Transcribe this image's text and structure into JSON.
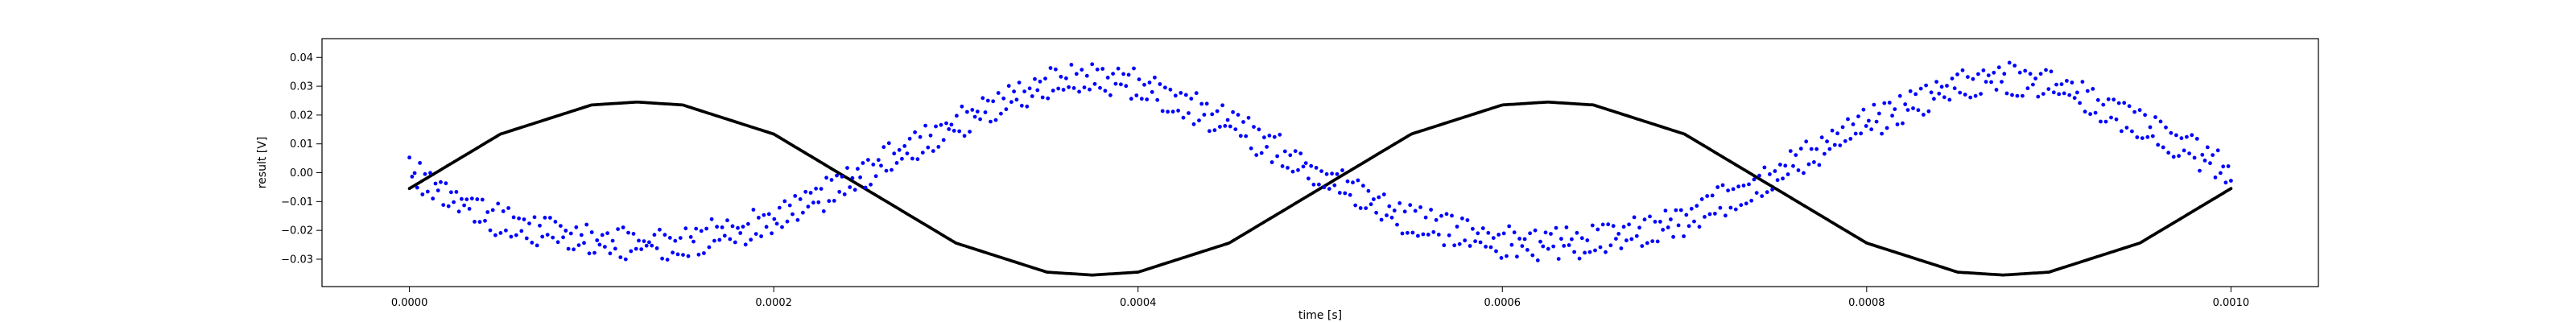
{
  "chart_data": {
    "type": "scatter",
    "title": "",
    "xlabel": "time [s]",
    "ylabel": "result [V]",
    "xlim": [
      -4.8e-05,
      0.001048
    ],
    "ylim": [
      -0.0395,
      0.0465
    ],
    "xticks": [
      0.0,
      0.0002,
      0.0004,
      0.0006,
      0.0008,
      0.001
    ],
    "xtick_labels": [
      "0.0000",
      "0.0002",
      "0.0004",
      "0.0006",
      "0.0008",
      "0.0010"
    ],
    "yticks": [
      -0.03,
      -0.02,
      -0.01,
      0.0,
      0.01,
      0.02,
      0.03,
      0.04
    ],
    "ytick_labels": [
      "−0.03",
      "−0.02",
      "−0.01",
      "0.00",
      "0.01",
      "0.02",
      "0.03",
      "0.04"
    ],
    "grid": false,
    "legend": "none",
    "series": [
      {
        "color": "#000000",
        "x": [
          0.0,
          5e-05,
          0.0001,
          0.000125,
          0.00015,
          0.0002,
          0.00025,
          0.0003,
          0.00035,
          0.000375,
          0.0004,
          0.00045,
          0.0005,
          0.00055,
          0.0006,
          0.000625,
          0.00065,
          0.0007,
          0.00075,
          0.0008,
          0.00085,
          0.000875,
          0.0009,
          0.00095,
          0.001
        ],
        "y": [
          -0.0055,
          0.0134,
          0.0235,
          0.0245,
          0.0235,
          0.0134,
          -0.0055,
          -0.0244,
          -0.0345,
          -0.0355,
          -0.0345,
          -0.0244,
          -0.0055,
          0.0134,
          0.0235,
          0.0245,
          0.0235,
          0.0134,
          -0.0055,
          -0.0244,
          -0.0345,
          -0.0355,
          -0.0345,
          -0.0244,
          -0.0055
        ]
      },
      {
        "color": "#0000ff",
        "x": [
          0.0,
          5e-05,
          0.0001,
          0.000125,
          0.00015,
          0.0002,
          0.00025,
          0.0003,
          0.00035,
          0.000375,
          0.0004,
          0.00045,
          0.0005,
          0.00055,
          0.0006,
          0.000625,
          0.00065,
          0.0007,
          0.00075,
          0.0008,
          0.00085,
          0.000875,
          0.0009,
          0.00095,
          0.001
        ],
        "y": [
          0.0,
          -0.017,
          -0.024,
          -0.025,
          -0.024,
          -0.017,
          0.0,
          0.017,
          0.031,
          0.033,
          0.031,
          0.017,
          0.0,
          -0.017,
          -0.024,
          -0.025,
          -0.024,
          -0.017,
          0.0,
          0.017,
          0.031,
          0.033,
          0.031,
          0.017,
          0.0
        ],
        "spread": 0.009
      }
    ]
  }
}
